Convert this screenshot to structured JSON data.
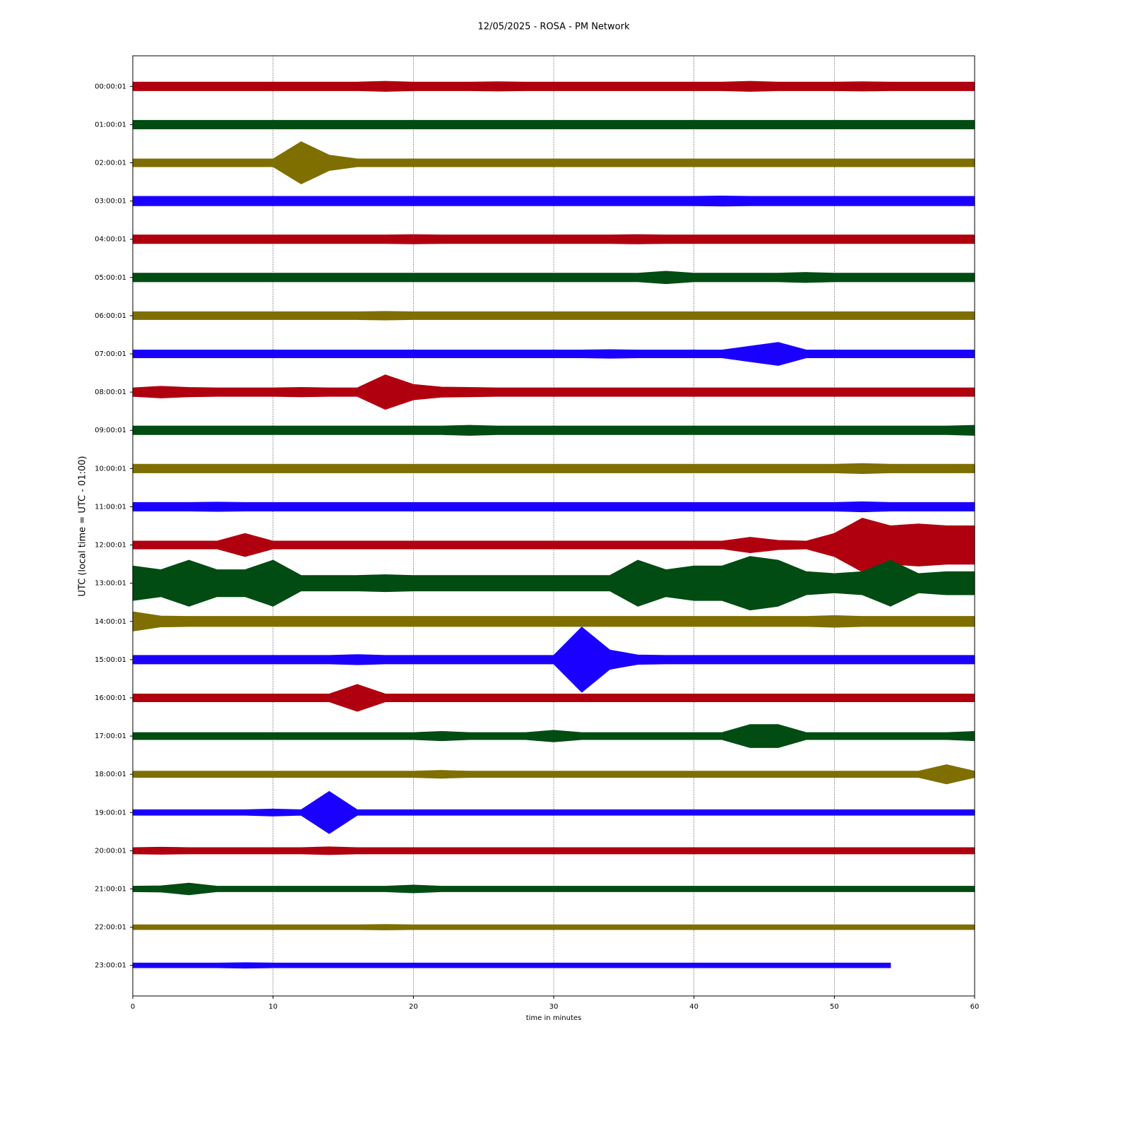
{
  "chart_data": {
    "type": "helicorder",
    "title": "12/05/2025 - ROSA - PM Network",
    "xlabel": "time in minutes",
    "ylabel": "UTC (local time = UTC - 01:00)",
    "xlim": [
      0,
      60
    ],
    "xticks": [
      0,
      10,
      20,
      30,
      40,
      50,
      60
    ],
    "grid": true,
    "categories": [
      "00:00:01",
      "01:00:01",
      "02:00:01",
      "03:00:01",
      "04:00:01",
      "05:00:01",
      "06:00:01",
      "07:00:01",
      "08:00:01",
      "09:00:01",
      "10:00:01",
      "11:00:01",
      "12:00:01",
      "13:00:01",
      "14:00:01",
      "15:00:01",
      "16:00:01",
      "17:00:01",
      "18:00:01",
      "19:00:01",
      "20:00:01",
      "21:00:01",
      "22:00:01",
      "23:00:01"
    ],
    "x": [
      0,
      2,
      4,
      6,
      8,
      10,
      12,
      14,
      16,
      18,
      20,
      22,
      24,
      26,
      28,
      30,
      32,
      34,
      36,
      38,
      40,
      42,
      44,
      46,
      48,
      50,
      52,
      54,
      56,
      58,
      60
    ],
    "series": [
      {
        "color": "#b0000f",
        "values": [
          0.11,
          0.11,
          0.11,
          0.11,
          0.11,
          0.11,
          0.11,
          0.11,
          0.11,
          0.13,
          0.11,
          0.11,
          0.11,
          0.12,
          0.11,
          0.11,
          0.11,
          0.11,
          0.11,
          0.11,
          0.11,
          0.11,
          0.13,
          0.11,
          0.11,
          0.11,
          0.12,
          0.11,
          0.11,
          0.11,
          0.11
        ]
      },
      {
        "color": "#004c12",
        "values": [
          0.11,
          0.11,
          0.11,
          0.11,
          0.11,
          0.11,
          0.11,
          0.11,
          0.11,
          0.11,
          0.11,
          0.11,
          0.11,
          0.11,
          0.11,
          0.11,
          0.11,
          0.11,
          0.11,
          0.11,
          0.11,
          0.11,
          0.11,
          0.11,
          0.11,
          0.11,
          0.11,
          0.11,
          0.11,
          0.11,
          0.11
        ]
      },
      {
        "color": "#7f6f00",
        "values": [
          0.1,
          0.1,
          0.1,
          0.1,
          0.1,
          0.1,
          0.55,
          0.2,
          0.1,
          0.1,
          0.1,
          0.1,
          0.1,
          0.1,
          0.1,
          0.1,
          0.1,
          0.1,
          0.1,
          0.1,
          0.1,
          0.1,
          0.1,
          0.1,
          0.1,
          0.1,
          0.1,
          0.1,
          0.1,
          0.1,
          0.1
        ]
      },
      {
        "color": "#1a00ff",
        "values": [
          0.12,
          0.12,
          0.12,
          0.12,
          0.12,
          0.12,
          0.12,
          0.12,
          0.12,
          0.12,
          0.12,
          0.12,
          0.12,
          0.12,
          0.12,
          0.12,
          0.12,
          0.12,
          0.12,
          0.12,
          0.12,
          0.13,
          0.12,
          0.12,
          0.12,
          0.12,
          0.12,
          0.12,
          0.12,
          0.12,
          0.12
        ]
      },
      {
        "color": "#b0000f",
        "values": [
          0.11,
          0.11,
          0.11,
          0.11,
          0.11,
          0.11,
          0.11,
          0.11,
          0.11,
          0.11,
          0.12,
          0.11,
          0.11,
          0.11,
          0.11,
          0.11,
          0.11,
          0.11,
          0.12,
          0.11,
          0.11,
          0.11,
          0.11,
          0.11,
          0.11,
          0.11,
          0.11,
          0.11,
          0.11,
          0.11,
          0.11
        ]
      },
      {
        "color": "#004c12",
        "values": [
          0.11,
          0.11,
          0.11,
          0.11,
          0.11,
          0.11,
          0.11,
          0.11,
          0.11,
          0.11,
          0.11,
          0.11,
          0.11,
          0.11,
          0.11,
          0.11,
          0.11,
          0.11,
          0.11,
          0.16,
          0.11,
          0.11,
          0.11,
          0.11,
          0.13,
          0.11,
          0.11,
          0.11,
          0.11,
          0.11,
          0.11
        ]
      },
      {
        "color": "#7f6f00",
        "values": [
          0.1,
          0.1,
          0.1,
          0.1,
          0.1,
          0.1,
          0.1,
          0.1,
          0.1,
          0.11,
          0.1,
          0.1,
          0.1,
          0.1,
          0.1,
          0.1,
          0.1,
          0.1,
          0.1,
          0.1,
          0.1,
          0.1,
          0.1,
          0.1,
          0.1,
          0.1,
          0.1,
          0.1,
          0.1,
          0.1,
          0.1
        ]
      },
      {
        "color": "#1a00ff",
        "values": [
          0.1,
          0.1,
          0.1,
          0.1,
          0.1,
          0.1,
          0.1,
          0.1,
          0.1,
          0.1,
          0.1,
          0.1,
          0.1,
          0.1,
          0.1,
          0.1,
          0.1,
          0.11,
          0.1,
          0.1,
          0.1,
          0.1,
          0.2,
          0.3,
          0.1,
          0.1,
          0.1,
          0.1,
          0.1,
          0.1,
          0.1
        ]
      },
      {
        "color": "#b0000f",
        "values": [
          0.11,
          0.15,
          0.12,
          0.11,
          0.11,
          0.11,
          0.12,
          0.11,
          0.11,
          0.45,
          0.2,
          0.13,
          0.12,
          0.11,
          0.11,
          0.11,
          0.11,
          0.11,
          0.11,
          0.11,
          0.11,
          0.11,
          0.11,
          0.11,
          0.11,
          0.11,
          0.11,
          0.11,
          0.11,
          0.11,
          0.11
        ]
      },
      {
        "color": "#004c12",
        "values": [
          0.11,
          0.11,
          0.11,
          0.11,
          0.11,
          0.11,
          0.11,
          0.11,
          0.11,
          0.11,
          0.11,
          0.11,
          0.13,
          0.11,
          0.11,
          0.11,
          0.11,
          0.11,
          0.11,
          0.11,
          0.11,
          0.11,
          0.11,
          0.11,
          0.11,
          0.11,
          0.11,
          0.11,
          0.11,
          0.11,
          0.13
        ]
      },
      {
        "color": "#7f6f00",
        "values": [
          0.11,
          0.11,
          0.11,
          0.11,
          0.11,
          0.11,
          0.11,
          0.11,
          0.11,
          0.11,
          0.11,
          0.11,
          0.11,
          0.11,
          0.11,
          0.11,
          0.11,
          0.11,
          0.11,
          0.11,
          0.11,
          0.11,
          0.11,
          0.11,
          0.11,
          0.11,
          0.13,
          0.11,
          0.11,
          0.11,
          0.11
        ]
      },
      {
        "color": "#1a00ff",
        "values": [
          0.11,
          0.11,
          0.11,
          0.12,
          0.11,
          0.11,
          0.11,
          0.11,
          0.11,
          0.11,
          0.11,
          0.11,
          0.11,
          0.11,
          0.11,
          0.11,
          0.11,
          0.11,
          0.11,
          0.11,
          0.11,
          0.11,
          0.11,
          0.11,
          0.11,
          0.11,
          0.13,
          0.11,
          0.11,
          0.11,
          0.11
        ]
      },
      {
        "color": "#b0000f",
        "values": [
          0.1,
          0.1,
          0.1,
          0.1,
          0.3,
          0.1,
          0.1,
          0.1,
          0.1,
          0.1,
          0.1,
          0.1,
          0.1,
          0.1,
          0.1,
          0.1,
          0.1,
          0.1,
          0.1,
          0.1,
          0.1,
          0.1,
          0.2,
          0.12,
          0.1,
          0.3,
          0.7,
          0.5,
          0.55,
          0.5,
          0.5
        ]
      },
      {
        "color": "#004c12",
        "values": [
          0.45,
          0.35,
          0.6,
          0.35,
          0.35,
          0.6,
          0.2,
          0.2,
          0.2,
          0.22,
          0.2,
          0.2,
          0.2,
          0.2,
          0.2,
          0.2,
          0.2,
          0.2,
          0.6,
          0.35,
          0.45,
          0.45,
          0.7,
          0.6,
          0.3,
          0.25,
          0.3,
          0.6,
          0.25,
          0.3,
          0.3
        ]
      },
      {
        "color": "#7f6f00",
        "values": [
          0.25,
          0.14,
          0.13,
          0.13,
          0.13,
          0.13,
          0.13,
          0.13,
          0.13,
          0.13,
          0.13,
          0.13,
          0.13,
          0.13,
          0.13,
          0.13,
          0.13,
          0.13,
          0.13,
          0.13,
          0.13,
          0.13,
          0.13,
          0.13,
          0.13,
          0.15,
          0.13,
          0.13,
          0.13,
          0.13,
          0.13
        ]
      },
      {
        "color": "#1a00ff",
        "values": [
          0.11,
          0.11,
          0.11,
          0.11,
          0.11,
          0.11,
          0.11,
          0.11,
          0.13,
          0.11,
          0.11,
          0.11,
          0.11,
          0.11,
          0.11,
          0.11,
          0.85,
          0.25,
          0.12,
          0.11,
          0.11,
          0.11,
          0.11,
          0.11,
          0.11,
          0.11,
          0.11,
          0.11,
          0.11,
          0.11,
          0.11
        ]
      },
      {
        "color": "#b0000f",
        "values": [
          0.1,
          0.1,
          0.1,
          0.1,
          0.1,
          0.1,
          0.1,
          0.1,
          0.35,
          0.1,
          0.1,
          0.1,
          0.1,
          0.1,
          0.1,
          0.1,
          0.1,
          0.1,
          0.1,
          0.1,
          0.1,
          0.1,
          0.1,
          0.1,
          0.1,
          0.1,
          0.1,
          0.1,
          0.1,
          0.1,
          0.1
        ]
      },
      {
        "color": "#004c12",
        "values": [
          0.09,
          0.09,
          0.09,
          0.09,
          0.09,
          0.09,
          0.09,
          0.09,
          0.09,
          0.09,
          0.09,
          0.12,
          0.09,
          0.09,
          0.09,
          0.15,
          0.09,
          0.09,
          0.09,
          0.09,
          0.09,
          0.09,
          0.3,
          0.3,
          0.09,
          0.09,
          0.09,
          0.09,
          0.09,
          0.09,
          0.12
        ]
      },
      {
        "color": "#7f6f00",
        "values": [
          0.08,
          0.08,
          0.08,
          0.08,
          0.08,
          0.08,
          0.08,
          0.08,
          0.08,
          0.08,
          0.08,
          0.1,
          0.08,
          0.08,
          0.08,
          0.08,
          0.08,
          0.08,
          0.08,
          0.08,
          0.08,
          0.08,
          0.08,
          0.08,
          0.08,
          0.08,
          0.08,
          0.08,
          0.08,
          0.25,
          0.08
        ]
      },
      {
        "color": "#1a00ff",
        "values": [
          0.07,
          0.07,
          0.07,
          0.07,
          0.07,
          0.09,
          0.07,
          0.55,
          0.07,
          0.07,
          0.07,
          0.07,
          0.07,
          0.07,
          0.07,
          0.07,
          0.07,
          0.07,
          0.07,
          0.07,
          0.07,
          0.07,
          0.07,
          0.07,
          0.07,
          0.07,
          0.07,
          0.07,
          0.07,
          0.07,
          0.07
        ]
      },
      {
        "color": "#b0000f",
        "values": [
          0.08,
          0.09,
          0.08,
          0.08,
          0.08,
          0.08,
          0.08,
          0.1,
          0.08,
          0.08,
          0.08,
          0.08,
          0.08,
          0.08,
          0.08,
          0.08,
          0.08,
          0.08,
          0.08,
          0.08,
          0.08,
          0.08,
          0.08,
          0.08,
          0.08,
          0.08,
          0.08,
          0.08,
          0.08,
          0.08,
          0.08
        ]
      },
      {
        "color": "#004c12",
        "values": [
          0.07,
          0.08,
          0.15,
          0.07,
          0.07,
          0.07,
          0.07,
          0.07,
          0.07,
          0.07,
          0.1,
          0.07,
          0.07,
          0.07,
          0.07,
          0.07,
          0.07,
          0.07,
          0.07,
          0.07,
          0.07,
          0.07,
          0.07,
          0.07,
          0.07,
          0.07,
          0.07,
          0.07,
          0.07,
          0.07,
          0.07
        ]
      },
      {
        "color": "#7f6f00",
        "values": [
          0.06,
          0.06,
          0.06,
          0.06,
          0.06,
          0.06,
          0.06,
          0.06,
          0.06,
          0.07,
          0.06,
          0.06,
          0.06,
          0.06,
          0.06,
          0.06,
          0.06,
          0.06,
          0.06,
          0.06,
          0.06,
          0.06,
          0.06,
          0.06,
          0.06,
          0.06,
          0.06,
          0.06,
          0.06,
          0.06,
          0.06
        ]
      },
      {
        "color": "#1a00ff",
        "values": [
          0.06,
          0.06,
          0.06,
          0.06,
          0.07,
          0.06,
          0.06,
          0.06,
          0.06,
          0.06,
          0.06,
          0.06,
          0.06,
          0.06,
          0.06,
          0.06,
          0.06,
          0.06,
          0.06,
          0.06,
          0.06,
          0.06,
          0.06,
          0.06,
          0.06,
          0.06,
          0.06,
          0.06,
          null,
          null,
          null
        ]
      }
    ]
  }
}
